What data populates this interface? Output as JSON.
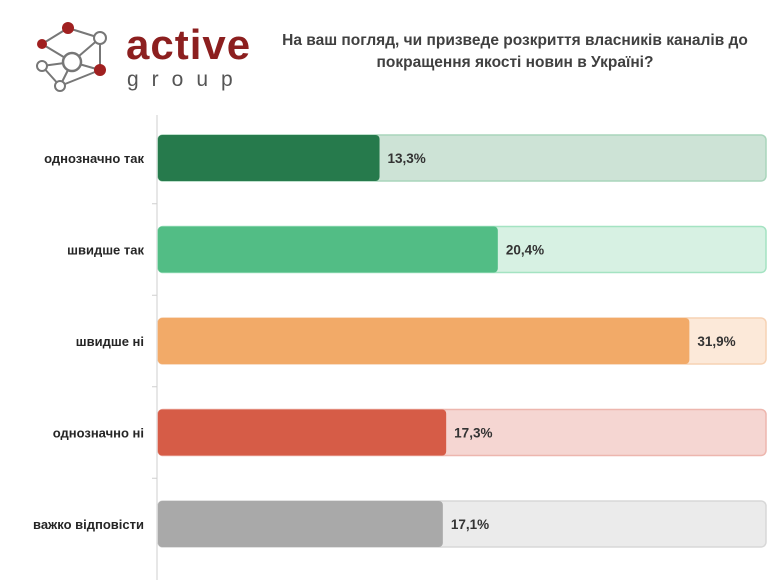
{
  "brand": {
    "name": "active",
    "sub": "group"
  },
  "question": "На ваш погляд, чи призведе розкриття власників каналів до покращення якості новин в Україні?",
  "chart_data": {
    "type": "bar",
    "orientation": "horizontal",
    "categories": [
      "однозначно так",
      "швидше так",
      "швидше ні",
      "однозначно ні",
      "важко відповісти"
    ],
    "values": [
      13.3,
      20.4,
      31.9,
      17.3,
      17.1
    ],
    "value_labels": [
      "13,3%",
      "20,4%",
      "31,9%",
      "17,3%",
      "17,1%"
    ],
    "xlim": [
      0,
      36.5
    ],
    "colors": [
      "#267a4c",
      "#52bd85",
      "#f2aa68",
      "#d65c47",
      "#a9a9a9"
    ],
    "track_colors": [
      "#cde3d6",
      "#d7f1e3",
      "#fce9d9",
      "#f5d6d2",
      "#ebebeb"
    ],
    "track_border_colors": [
      "#a9d5bb",
      "#a4e3c2",
      "#f6d2b4",
      "#edb6ae",
      "#d8d8d8"
    ]
  }
}
